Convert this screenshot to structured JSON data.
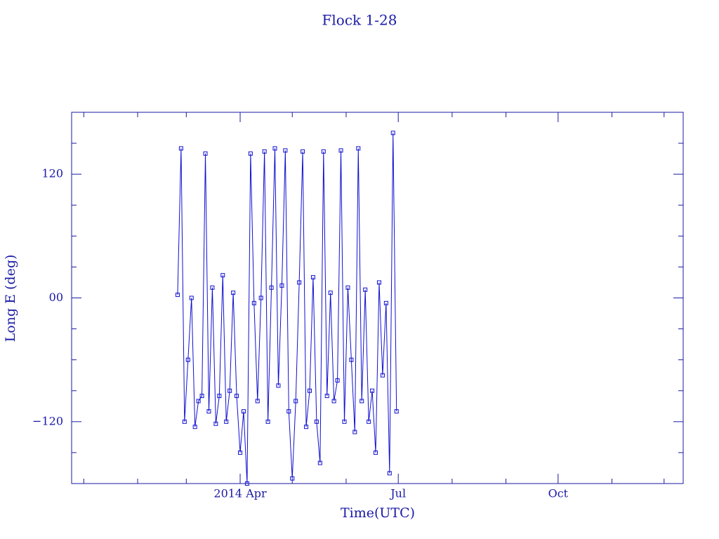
{
  "chart_data": {
    "type": "line",
    "title": "Flock 1-28",
    "xlabel": "Time(UTC)",
    "ylabel": "Long E (deg)",
    "color": "#1010d0",
    "xlim": [
      -6,
      346
    ],
    "ylim": [
      -180,
      180
    ],
    "xticks": [
      {
        "value": 91,
        "label": "2014 Apr"
      },
      {
        "value": 182,
        "label": "Jul"
      },
      {
        "value": 274,
        "label": "Oct"
      }
    ],
    "xminorticks": [
      1,
      32,
      60,
      121,
      152,
      213,
      244,
      305,
      335
    ],
    "yticks": [
      {
        "value": -120,
        "label": "−120"
      },
      {
        "value": 0,
        "label": "00"
      },
      120
    ],
    "yminorticks": [
      -150,
      -90,
      -60,
      -30,
      30,
      60,
      90,
      150
    ],
    "x": [
      55,
      57,
      59,
      61,
      63,
      65,
      67,
      69,
      71,
      73,
      75,
      77,
      79,
      81,
      83,
      85,
      87,
      89,
      91,
      93,
      95,
      97,
      99,
      101,
      103,
      105,
      107,
      109,
      111,
      113,
      115,
      117,
      119,
      121,
      123,
      125,
      127,
      129,
      131,
      133,
      135,
      137,
      139,
      141,
      143,
      145,
      147,
      149,
      151,
      153,
      155,
      157,
      159,
      161,
      163,
      165,
      167,
      169,
      171,
      173,
      175,
      177,
      179,
      181
    ],
    "values": [
      3,
      145,
      -120,
      -60,
      0,
      -125,
      -100,
      -95,
      140,
      -110,
      10,
      -122,
      -95,
      22,
      -120,
      -90,
      5,
      -95,
      -150,
      -110,
      -180,
      140,
      -5,
      -100,
      0,
      142,
      -120,
      10,
      145,
      -85,
      12,
      143,
      -110,
      -175,
      -100,
      15,
      142,
      -125,
      -90,
      20,
      -120,
      -160,
      142,
      -95,
      5,
      -100,
      -80,
      143,
      -120,
      10,
      -60,
      -130,
      145,
      -100,
      8,
      -120,
      -90,
      -150,
      15,
      -75,
      -5,
      -170,
      160,
      -110
    ]
  }
}
